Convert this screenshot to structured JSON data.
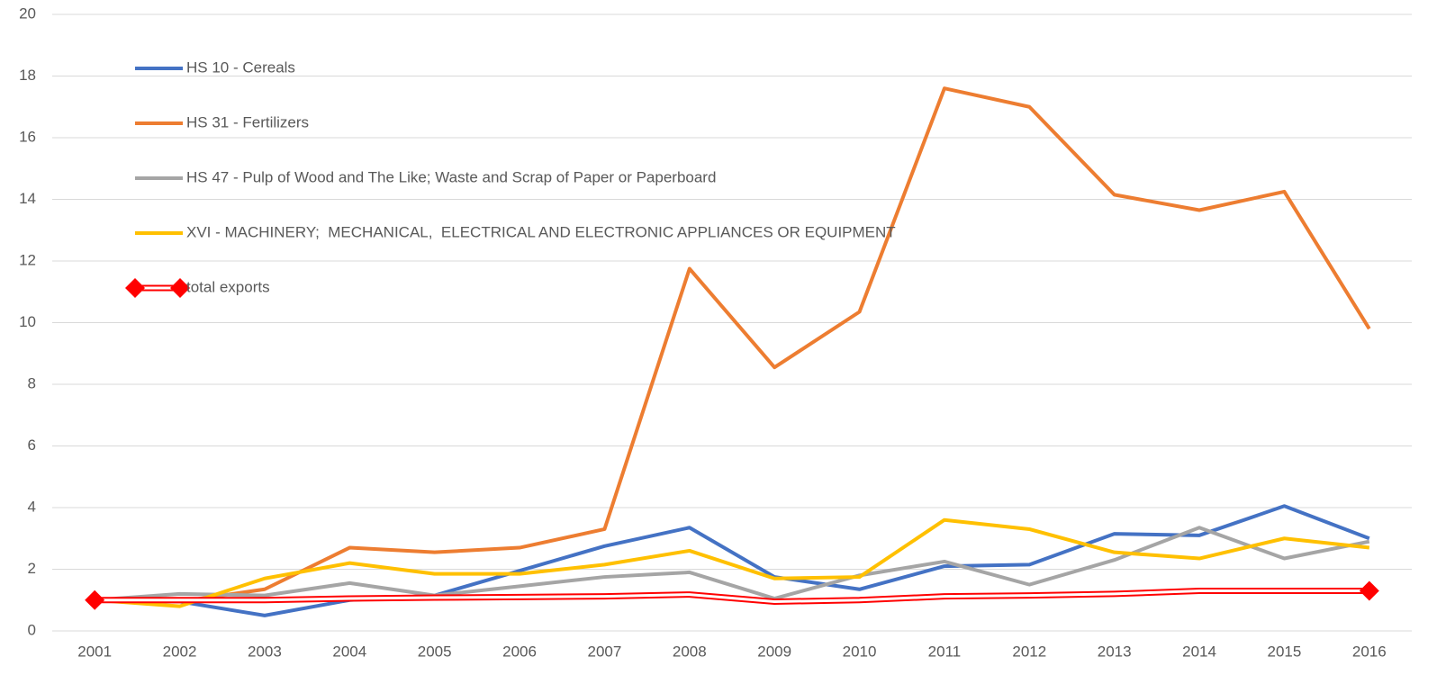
{
  "chart_data": {
    "type": "line",
    "categories": [
      "2001",
      "2002",
      "2003",
      "2004",
      "2005",
      "2006",
      "2007",
      "2008",
      "2009",
      "2010",
      "2011",
      "2012",
      "2013",
      "2014",
      "2015",
      "2016"
    ],
    "series": [
      {
        "name": "HS 10 - Cereals",
        "color": "#4472c4",
        "values": [
          1.0,
          0.95,
          0.5,
          1.0,
          1.15,
          1.95,
          2.75,
          3.35,
          1.75,
          1.35,
          2.1,
          2.15,
          3.15,
          3.1,
          4.05,
          3.0
        ]
      },
      {
        "name": "HS 31 - Fertilizers",
        "color": "#ed7d31",
        "values": [
          1.0,
          0.95,
          1.35,
          2.7,
          2.55,
          2.7,
          3.3,
          11.75,
          8.55,
          10.35,
          17.6,
          17.0,
          14.15,
          13.65,
          14.25,
          9.8
        ]
      },
      {
        "name": "HS 47 - Pulp of Wood and The Like; Waste and Scrap of Paper or Paperboard",
        "color": "#a5a5a5",
        "values": [
          1.0,
          1.2,
          1.15,
          1.55,
          1.15,
          1.45,
          1.75,
          1.9,
          1.05,
          1.8,
          2.25,
          1.5,
          2.3,
          3.35,
          2.35,
          2.9
        ]
      },
      {
        "name": "XVI - MACHINERY;  MECHANICAL,  ELECTRICAL AND ELECTRONIC APPLIANCES OR EQUIPMENT",
        "color": "#ffc000",
        "values": [
          1.0,
          0.8,
          1.7,
          2.2,
          1.85,
          1.85,
          2.15,
          2.6,
          1.7,
          1.75,
          3.6,
          3.3,
          2.55,
          2.35,
          3.0,
          2.7
        ]
      },
      {
        "name": "total exports",
        "color": "#ff0000",
        "style": "double",
        "values": [
          1.0,
          1.0,
          1.0,
          1.05,
          1.08,
          1.1,
          1.12,
          1.18,
          0.95,
          1.0,
          1.12,
          1.15,
          1.2,
          1.3,
          1.3,
          1.3
        ]
      }
    ],
    "ylim": [
      0,
      20
    ],
    "yticks": [
      0,
      2,
      4,
      6,
      8,
      10,
      12,
      14,
      16,
      18,
      20
    ],
    "grid": true,
    "legend": "upper left"
  }
}
